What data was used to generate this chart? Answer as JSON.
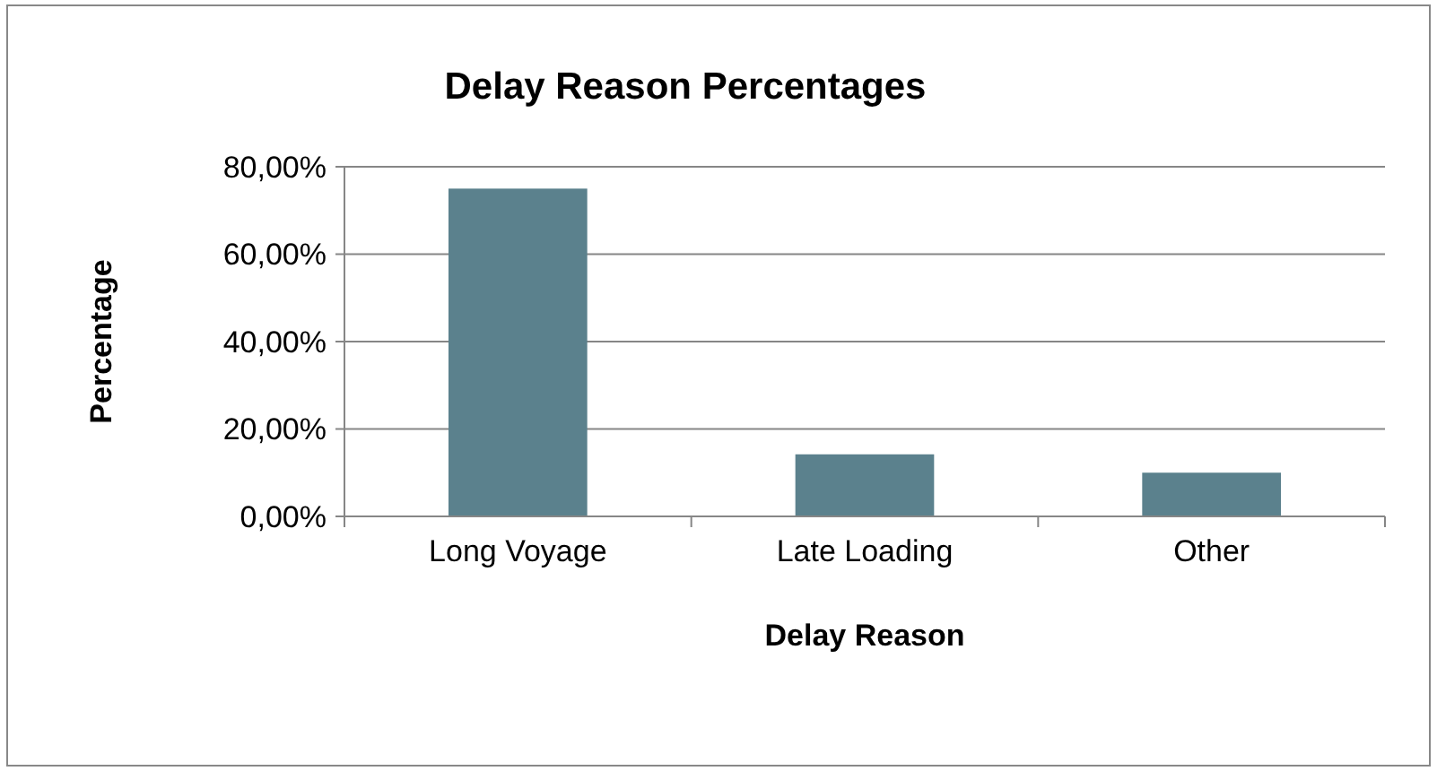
{
  "chart_data": {
    "type": "bar",
    "title": "Delay Reason Percentages",
    "xlabel": "Delay Reason",
    "ylabel": "Percentage",
    "categories": [
      "Long Voyage",
      "Late Loading",
      "Other"
    ],
    "values": [
      75,
      14.2,
      10
    ],
    "color": "#5b818d",
    "ylim": [
      0,
      80
    ],
    "yticks": [
      {
        "value": 0,
        "label": "0,00%"
      },
      {
        "value": 20,
        "label": "20,00%"
      },
      {
        "value": 40,
        "label": "40,00%"
      },
      {
        "value": 60,
        "label": "60,00%"
      },
      {
        "value": 80,
        "label": "80,00%"
      }
    ],
    "grid": "y"
  }
}
